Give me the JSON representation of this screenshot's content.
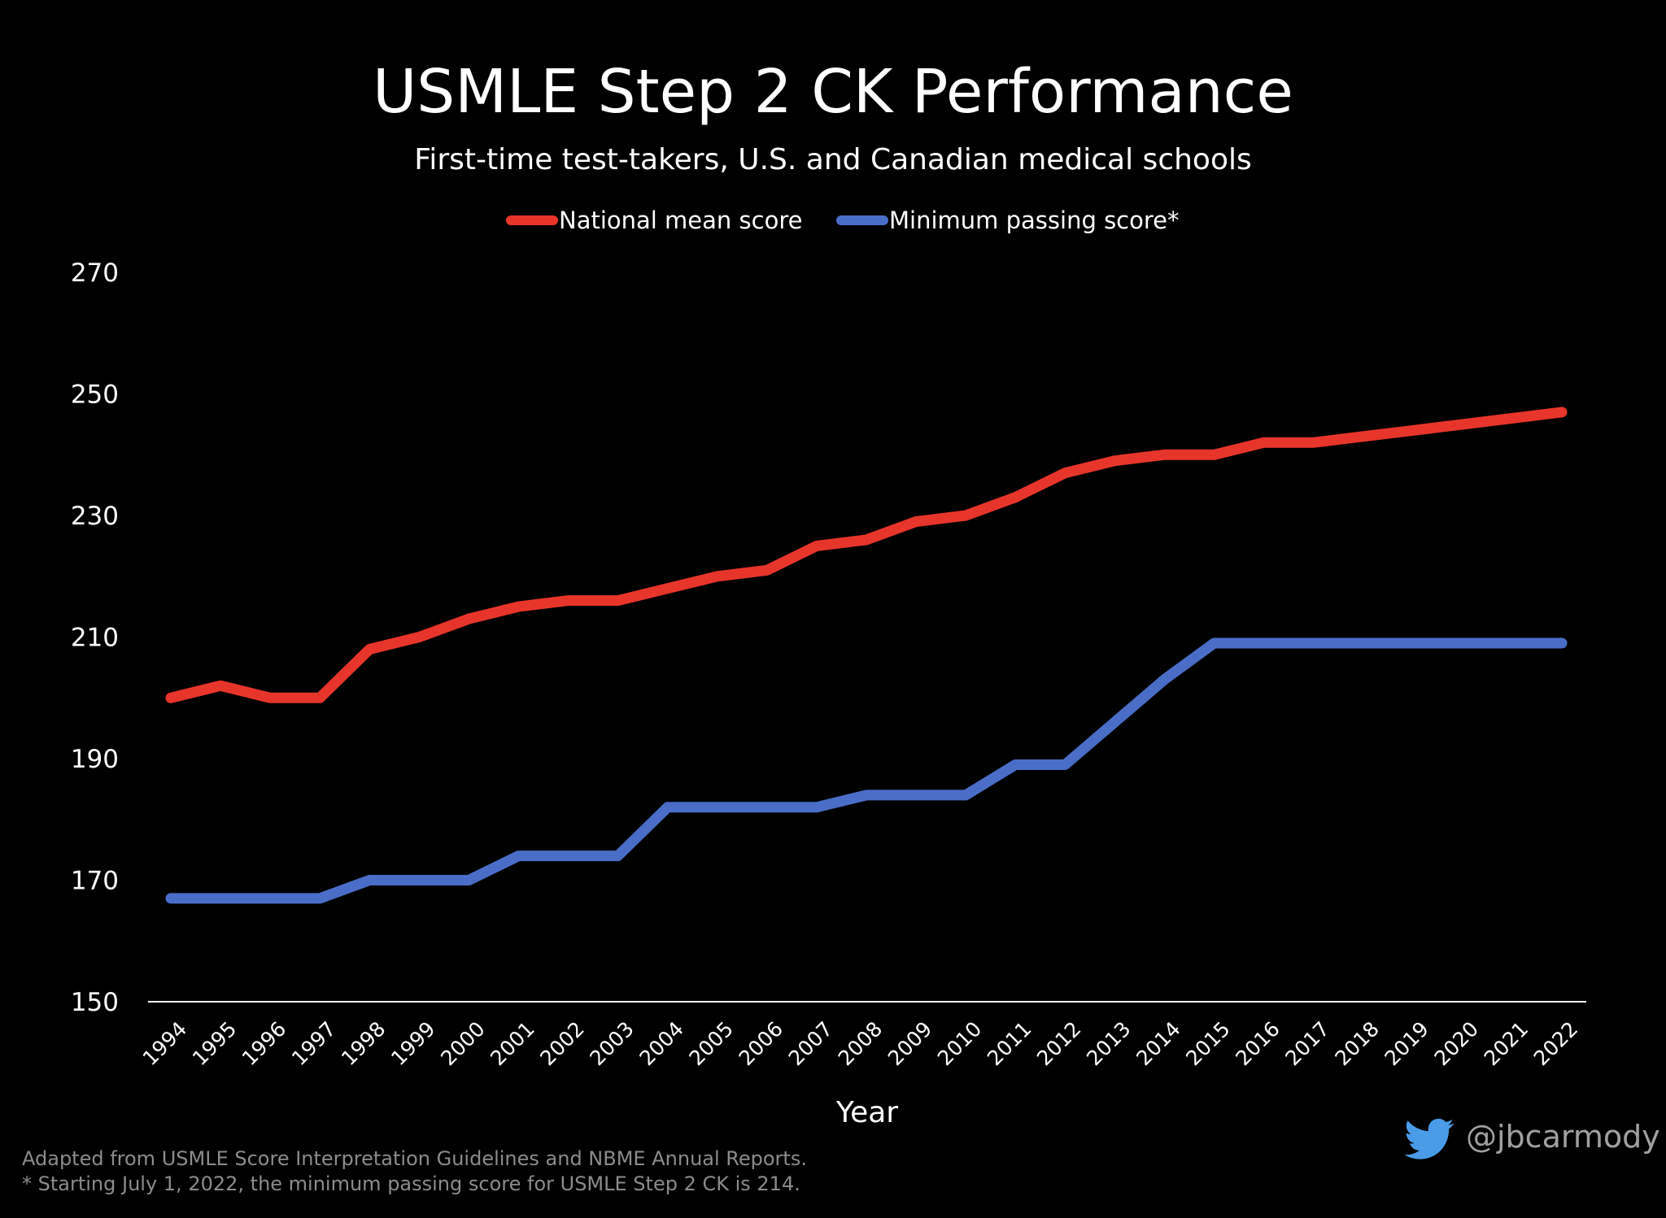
{
  "chart_data": {
    "type": "line",
    "title": "USMLE Step 2 CK Performance",
    "subtitle": "First-time test-takers, U.S. and Canadian medical schools",
    "xlabel": "Year",
    "ylabel": "",
    "ylim": [
      150,
      270
    ],
    "yticks": [
      150,
      170,
      190,
      210,
      230,
      250,
      270
    ],
    "grid": false,
    "legend_position": "top-center",
    "x": [
      "1994",
      "1995",
      "1996",
      "1997",
      "1998",
      "1999",
      "2000",
      "2001",
      "2002",
      "2003",
      "2004",
      "2005",
      "2006",
      "2007",
      "2008",
      "2009",
      "2010",
      "2011",
      "2012",
      "2013",
      "2014",
      "2015",
      "2016",
      "2017",
      "2018",
      "2019",
      "2020",
      "2021",
      "2022"
    ],
    "series": [
      {
        "name": "National mean score",
        "color": "#e8352b",
        "values": [
          200,
          202,
          200,
          200,
          208,
          210,
          213,
          215,
          216,
          216,
          218,
          220,
          221,
          225,
          226,
          229,
          230,
          233,
          237,
          239,
          240,
          240,
          242,
          242,
          243,
          244,
          245,
          246,
          247
        ]
      },
      {
        "name": "Minimum passing score*",
        "color": "#4a6ec8",
        "values": [
          167,
          167,
          167,
          167,
          170,
          170,
          170,
          174,
          174,
          174,
          182,
          182,
          182,
          182,
          184,
          184,
          184,
          189,
          189,
          196,
          203,
          209,
          209,
          209,
          209,
          209,
          209,
          209,
          209
        ]
      }
    ]
  },
  "footer": {
    "source_note": "Adapted from USMLE Score Interpretation Guidelines and NBME Annual Reports.",
    "passing_note": "* Starting July 1, 2022, the minimum passing score for USMLE Step 2 CK is 214."
  },
  "attribution": {
    "handle": "@jbcarmody",
    "icon": "twitter-bird-icon",
    "icon_color": "#4a9ce8"
  },
  "colors": {
    "background": "#000000",
    "axis": "#ffffff"
  }
}
